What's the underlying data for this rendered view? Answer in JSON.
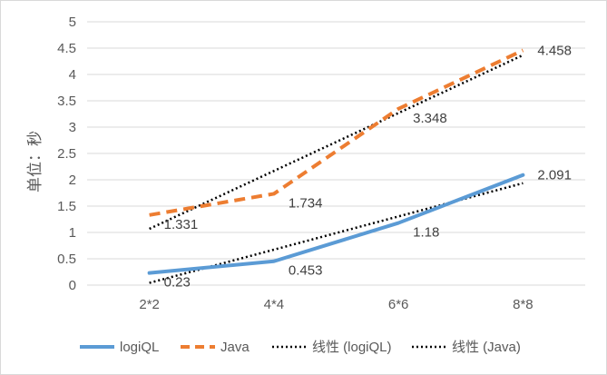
{
  "chart_data": {
    "type": "line",
    "title": "",
    "xlabel": "",
    "ylabel": "单位：秒",
    "categories": [
      "2*2",
      "4*4",
      "6*6",
      "8*8"
    ],
    "ylim": [
      0,
      5
    ],
    "yticks": [
      "0",
      "0.5",
      "1",
      "1.5",
      "2",
      "2.5",
      "3",
      "3.5",
      "4",
      "4.5",
      "5"
    ],
    "grid": true,
    "legend_position": "bottom",
    "series": [
      {
        "name": "logiQL",
        "values": [
          0.23,
          0.453,
          1.18,
          2.091
        ],
        "labels": [
          "0.23",
          "0.453",
          "1.18",
          "2.091"
        ],
        "color": "#5b9bd5",
        "style": "solid"
      },
      {
        "name": "Java",
        "values": [
          1.331,
          1.734,
          3.348,
          4.458
        ],
        "labels": [
          "1.331",
          "1.734",
          "3.348",
          "4.458"
        ],
        "color": "#ed7d31",
        "style": "dashed"
      }
    ],
    "trendlines": [
      {
        "name": "线性 (logiQL)",
        "type": "linear",
        "series": "logiQL",
        "color": "#000000",
        "style": "dotted"
      },
      {
        "name": "线性 (Java)",
        "type": "linear",
        "series": "Java",
        "color": "#000000",
        "style": "dotted"
      }
    ]
  }
}
